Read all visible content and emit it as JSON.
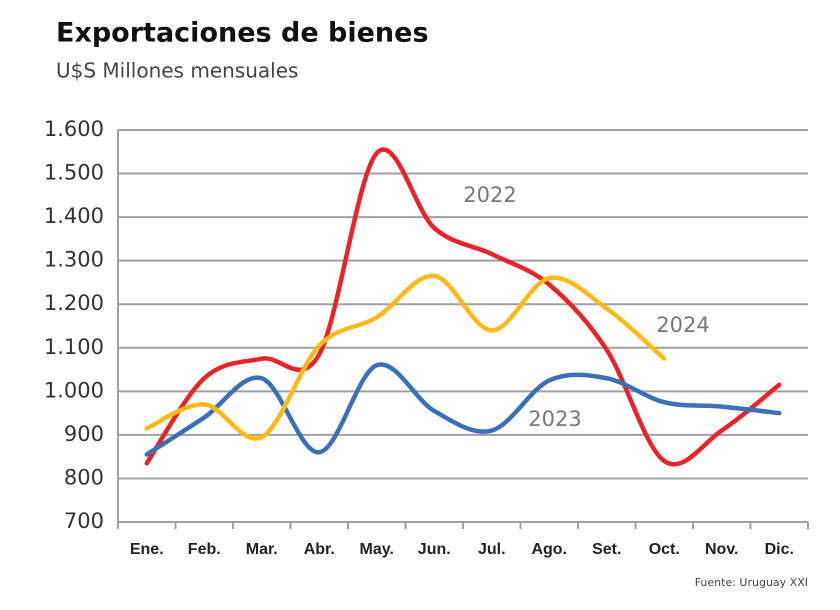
{
  "chart_data": {
    "type": "line",
    "title": "Exportaciones de bienes",
    "subtitle": "U$S Millones  mensuales",
    "note": "Fuente: Uruguay XXI",
    "categories": [
      "Ene.",
      "Feb.",
      "Mar.",
      "Abr.",
      "May.",
      "Jun.",
      "Jul.",
      "Ago.",
      "Set.",
      "Oct.",
      "Nov.",
      "Dic."
    ],
    "series": [
      {
        "name": "2022",
        "color": "#e8232a",
        "values": [
          835,
          1030,
          1075,
          1085,
          1547,
          1375,
          1315,
          1245,
          1095,
          840,
          910,
          1015
        ]
      },
      {
        "name": "2023",
        "color": "#3b6fb6",
        "values": [
          855,
          940,
          1030,
          860,
          1060,
          955,
          910,
          1025,
          1030,
          975,
          965,
          950
        ]
      },
      {
        "name": "2024",
        "color": "#fbb91a",
        "values": [
          915,
          970,
          895,
          1105,
          1170,
          1265,
          1140,
          1260,
          1190,
          1075,
          null,
          null
        ]
      }
    ],
    "ylim": [
      700,
      1600
    ],
    "yticks": [
      {
        "value": 700,
        "label": "700"
      },
      {
        "value": 800,
        "label": "800"
      },
      {
        "value": 900,
        "label": "900"
      },
      {
        "value": 1000,
        "label": "1.000"
      },
      {
        "value": 1100,
        "label": "1.100"
      },
      {
        "value": 1200,
        "label": "1.200"
      },
      {
        "value": 1300,
        "label": "1.300"
      },
      {
        "value": 1400,
        "label": "1.400"
      },
      {
        "value": 1500,
        "label": "1.500"
      },
      {
        "value": 1600,
        "label": "1.600"
      }
    ],
    "grid": true
  }
}
